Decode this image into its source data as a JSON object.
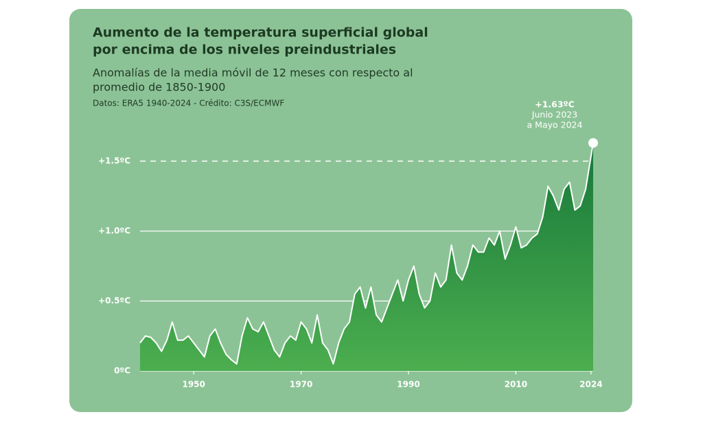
{
  "chart_data": {
    "type": "area",
    "title": [
      "Aumento de la temperatura superficial global",
      "por encima de los niveles preindustriales"
    ],
    "subtitle": [
      "Anomalías de la media móvil de 12 meses con respecto al",
      "promedio de 1850-1900"
    ],
    "source": "Datos: ERA5 1940-2024 - Crédito: C3S/ECMWF",
    "annotation": [
      "+1.63ºC",
      "Junio 2023",
      "a Mayo 2024"
    ],
    "x": [
      1940,
      1941,
      1942,
      1943,
      1944,
      1945,
      1946,
      1947,
      1948,
      1949,
      1950,
      1951,
      1952,
      1953,
      1954,
      1955,
      1956,
      1957,
      1958,
      1959,
      1960,
      1961,
      1962,
      1963,
      1964,
      1965,
      1966,
      1967,
      1968,
      1969,
      1970,
      1971,
      1972,
      1973,
      1974,
      1975,
      1976,
      1977,
      1978,
      1979,
      1980,
      1981,
      1982,
      1983,
      1984,
      1985,
      1986,
      1987,
      1988,
      1989,
      1990,
      1991,
      1992,
      1993,
      1994,
      1995,
      1996,
      1997,
      1998,
      1999,
      2000,
      2001,
      2002,
      2003,
      2004,
      2005,
      2006,
      2007,
      2008,
      2009,
      2010,
      2011,
      2012,
      2013,
      2014,
      2015,
      2016,
      2017,
      2018,
      2019,
      2020,
      2021,
      2022,
      2023,
      2024.4
    ],
    "series": [
      {
        "name": "Anomalía",
        "color": "#2a8a45",
        "line_color": "#ffffff",
        "values": [
          0.2,
          0.25,
          0.24,
          0.2,
          0.14,
          0.22,
          0.35,
          0.22,
          0.22,
          0.25,
          0.2,
          0.15,
          0.1,
          0.25,
          0.3,
          0.2,
          0.12,
          0.08,
          0.05,
          0.25,
          0.38,
          0.3,
          0.28,
          0.35,
          0.25,
          0.15,
          0.1,
          0.2,
          0.25,
          0.22,
          0.35,
          0.3,
          0.2,
          0.4,
          0.2,
          0.15,
          0.05,
          0.2,
          0.3,
          0.35,
          0.55,
          0.6,
          0.45,
          0.6,
          0.4,
          0.35,
          0.45,
          0.55,
          0.65,
          0.5,
          0.65,
          0.75,
          0.55,
          0.45,
          0.5,
          0.7,
          0.6,
          0.65,
          0.9,
          0.7,
          0.65,
          0.75,
          0.9,
          0.85,
          0.85,
          0.95,
          0.9,
          1.0,
          0.8,
          0.9,
          1.03,
          0.88,
          0.9,
          0.95,
          0.98,
          1.1,
          1.32,
          1.25,
          1.15,
          1.3,
          1.35,
          1.15,
          1.18,
          1.3,
          1.63
        ]
      }
    ],
    "xlim": [
      1940,
      2024.4
    ],
    "xticks": [
      1950,
      1970,
      1990,
      2010,
      2024
    ],
    "ylim": [
      0,
      1.7
    ],
    "yticks": [
      {
        "value": 0,
        "label": "0ºC"
      },
      {
        "value": 0.5,
        "label": "+0.5ºC"
      },
      {
        "value": 1.0,
        "label": "+1.0ºC"
      },
      {
        "value": 1.5,
        "label": "+1.5ºC"
      }
    ],
    "grid": true
  }
}
